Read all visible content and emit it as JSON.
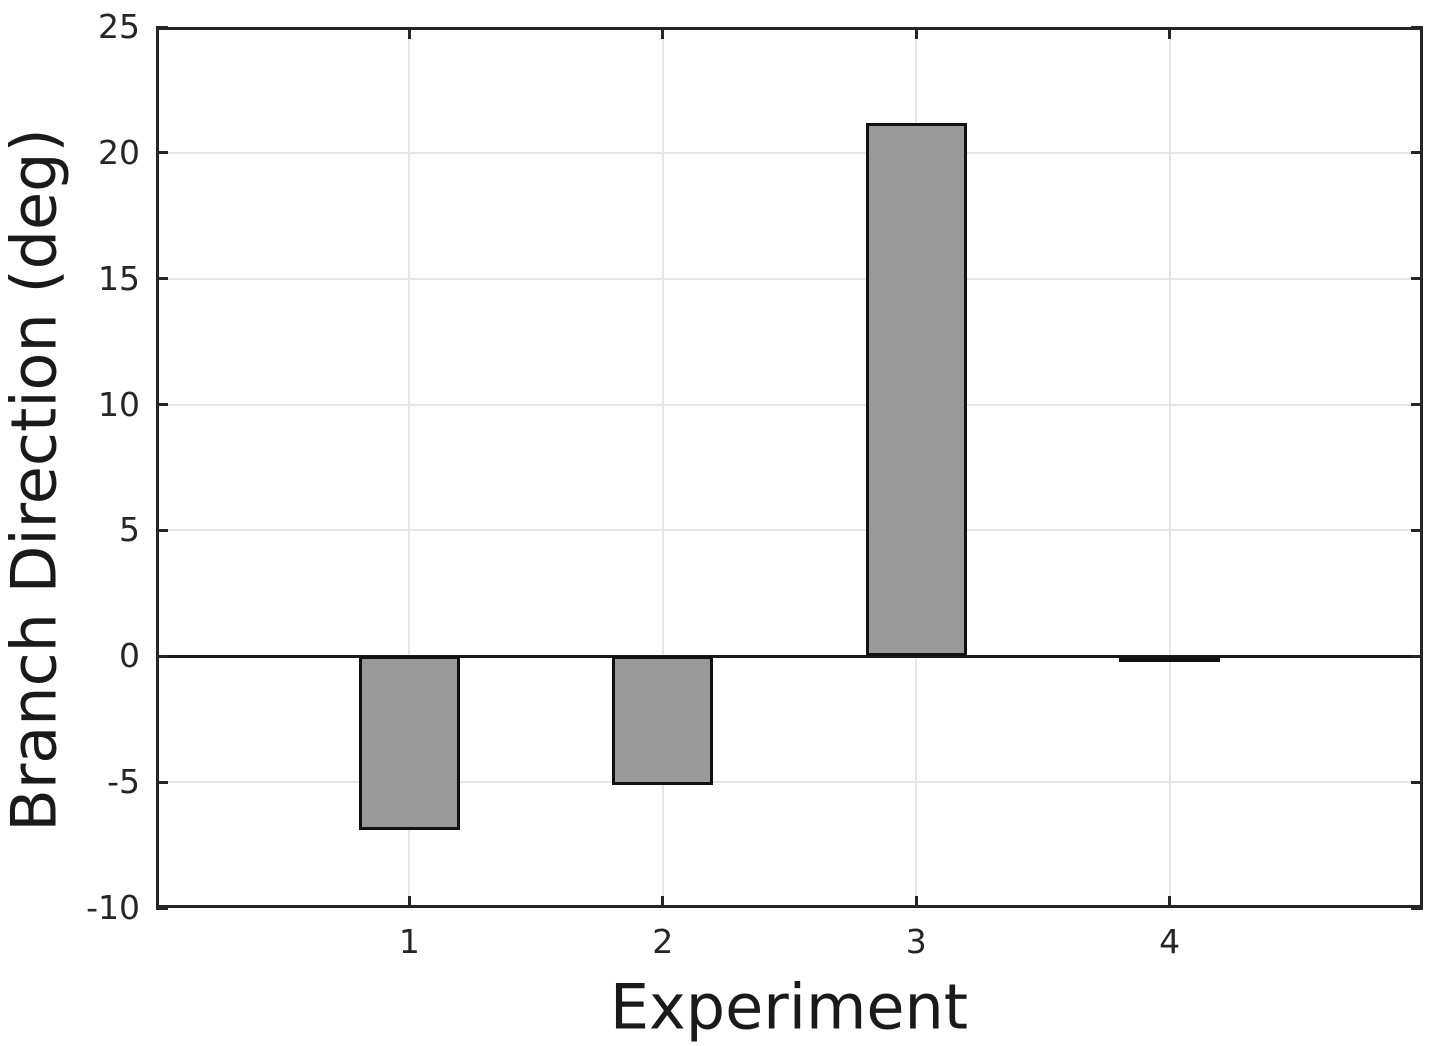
{
  "chart_data": {
    "type": "bar",
    "title": "",
    "xlabel": "Experiment",
    "ylabel": "Branch Direction (deg)",
    "categories": [
      "1",
      "2",
      "3",
      "4"
    ],
    "x": [
      1,
      2,
      3,
      4
    ],
    "values": [
      -6.9,
      -5.1,
      21.2,
      -0.2
    ],
    "bar_width_units": 0.4,
    "xlim": [
      0,
      5
    ],
    "ylim": [
      -10,
      25
    ],
    "xticks": [
      1,
      2,
      3,
      4
    ],
    "xtick_labels": [
      "1",
      "2",
      "3",
      "4"
    ],
    "yticks": [
      -10,
      -5,
      0,
      5,
      10,
      15,
      20,
      25
    ],
    "ytick_labels": [
      "-10",
      "-5",
      "0",
      "5",
      "10",
      "15",
      "20",
      "25"
    ],
    "grid": true,
    "legend": null,
    "colors": {
      "bar_fill": "#999999",
      "bar_edge": "#111111",
      "axis_frame": "#262626",
      "zero_line": "#1a1a1a",
      "gridline": "#e6e6e6",
      "tick_text": "#262626",
      "label_text": "#1a1a1a",
      "background": "#ffffff"
    }
  }
}
